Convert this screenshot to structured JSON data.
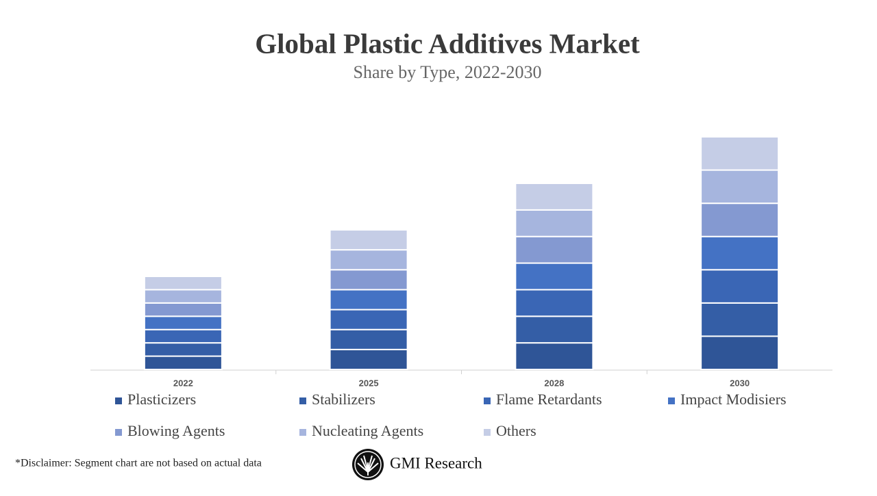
{
  "chart_data": {
    "type": "stacked_bar",
    "title": "Global Plastic Additives Market",
    "subtitle": "Share by Type, 2022-2030",
    "categories": [
      "2022",
      "2025",
      "2028",
      "2030"
    ],
    "series": [
      {
        "name": "Plasticizers",
        "color": "#2f5597",
        "values": [
          2.8,
          4.2,
          5.6,
          7
        ]
      },
      {
        "name": "Stabilizers",
        "color": "#345ea6",
        "values": [
          2.8,
          4.2,
          5.6,
          7
        ]
      },
      {
        "name": "Flame Retardants",
        "color": "#3a66b5",
        "values": [
          2.8,
          4.2,
          5.6,
          7
        ]
      },
      {
        "name": "Impact Modisiers",
        "color": "#4472c4",
        "values": [
          2.8,
          4.2,
          5.6,
          7
        ]
      },
      {
        "name": "Blowing Agents",
        "color": "#8499d1",
        "values": [
          2.8,
          4.2,
          5.6,
          7
        ]
      },
      {
        "name": "Nucleating Agents",
        "color": "#a6b5de",
        "values": [
          2.8,
          4.2,
          5.6,
          7
        ]
      },
      {
        "name": "Others",
        "color": "#c5cde6",
        "values": [
          2.8,
          4.2,
          5.6,
          7
        ]
      }
    ]
  },
  "disclaimer": "*Disclaimer:   Segment chart are not based on actual data",
  "brand": "GMI Research"
}
